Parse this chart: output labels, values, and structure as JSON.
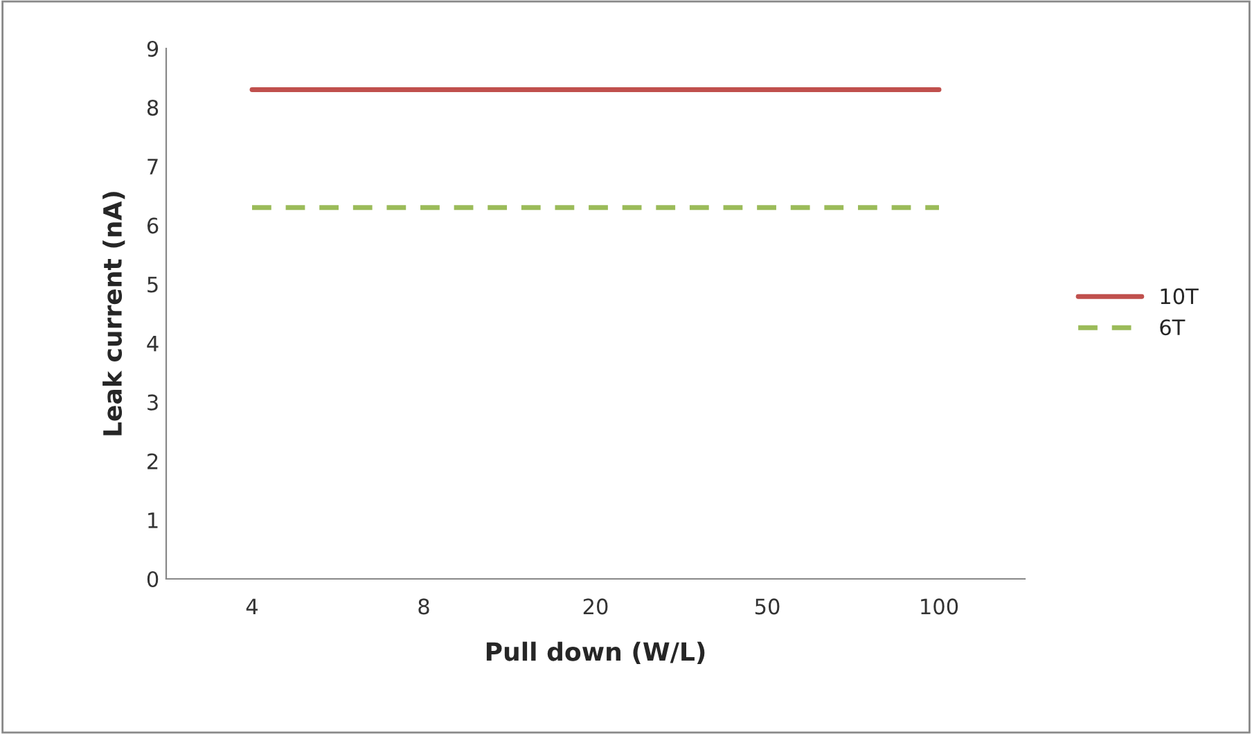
{
  "chart_data": {
    "type": "line",
    "xlabel": "Pull down (W/L)",
    "ylabel": "Leak current (nA)",
    "categories": [
      "4",
      "8",
      "20",
      "50",
      "100"
    ],
    "series": [
      {
        "name": "10T",
        "color": "#c0504d",
        "line_style": "solid",
        "values": [
          8.3,
          8.3,
          8.3,
          8.3,
          8.3
        ]
      },
      {
        "name": "6T",
        "color": "#9bbb59",
        "line_style": "dashed",
        "values": [
          6.3,
          6.3,
          6.3,
          6.3,
          6.3
        ]
      }
    ],
    "ylim": [
      0,
      9
    ],
    "yticks": [
      0,
      1,
      2,
      3,
      4,
      5,
      6,
      7,
      8,
      9
    ],
    "grid": false,
    "legend": "right",
    "marker": "none"
  }
}
